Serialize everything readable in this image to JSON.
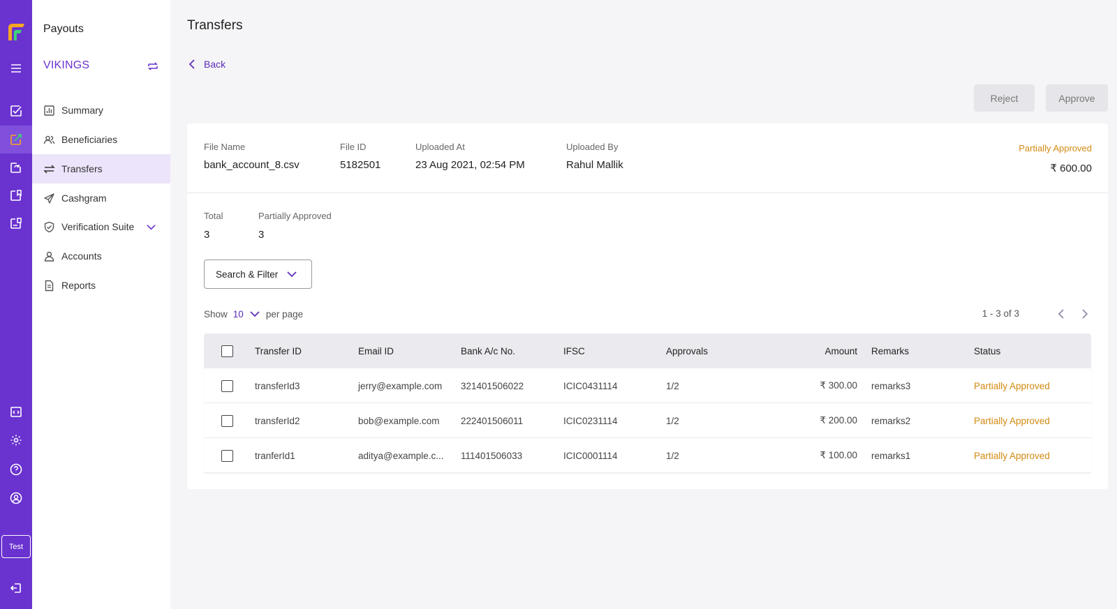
{
  "rail": {
    "test_label": "Test"
  },
  "sidebar": {
    "title": "Payouts",
    "org": "VIKINGS",
    "items": [
      {
        "label": "Summary",
        "icon": "chart-icon"
      },
      {
        "label": "Beneficiaries",
        "icon": "users-icon"
      },
      {
        "label": "Transfers",
        "icon": "transfer-icon"
      },
      {
        "label": "Cashgram",
        "icon": "paper-plane-icon"
      },
      {
        "label": "Verification Suite",
        "icon": "shield-check-icon"
      },
      {
        "label": "Accounts",
        "icon": "user-icon"
      },
      {
        "label": "Reports",
        "icon": "document-icon"
      }
    ]
  },
  "header": {
    "title": "Transfers",
    "back_label": "Back",
    "reject_label": "Reject",
    "approve_label": "Approve"
  },
  "file": {
    "name_label": "File Name",
    "name": "bank_account_8.csv",
    "id_label": "File ID",
    "id": "5182501",
    "uploaded_at_label": "Uploaded At",
    "uploaded_at": "23 Aug 2021, 02:54 PM",
    "uploaded_by_label": "Uploaded By",
    "uploaded_by": "Rahul Mallik",
    "status": "Partially Approved",
    "amount": "₹ 600.00"
  },
  "summary": {
    "total_label": "Total",
    "total": "3",
    "partial_label": "Partially Approved",
    "partial": "3"
  },
  "controls": {
    "filter_label": "Search & Filter",
    "show_label": "Show",
    "per_page_value": "10",
    "per_page_label": "per page",
    "pagination": "1 - 3 of 3"
  },
  "table": {
    "headers": {
      "transfer_id": "Transfer ID",
      "email": "Email ID",
      "bank": "Bank A/c No.",
      "ifsc": "IFSC",
      "approvals": "Approvals",
      "amount": "Amount",
      "remarks": "Remarks",
      "status": "Status"
    },
    "rows": [
      {
        "transfer_id": "transferId3",
        "email": "jerry@example.com",
        "bank": "321401506022",
        "ifsc": "ICIC0431114",
        "approvals": "1/2",
        "amount": "₹ 300.00",
        "remarks": "remarks3",
        "status": "Partially Approved"
      },
      {
        "transfer_id": "transferId2",
        "email": "bob@example.com",
        "bank": "222401506011",
        "ifsc": "ICIC0231114",
        "approvals": "1/2",
        "amount": "₹ 200.00",
        "remarks": "remarks2",
        "status": "Partially Approved"
      },
      {
        "transfer_id": "tranferId1",
        "email": "aditya@example.c...",
        "bank": "111401506033",
        "ifsc": "ICIC0001114",
        "approvals": "1/2",
        "amount": "₹ 100.00",
        "remarks": "remarks1",
        "status": "Partially Approved"
      }
    ]
  },
  "colors": {
    "brand": "#6a32cf",
    "accent_text": "#5a2bb8",
    "warning": "#d28a12"
  }
}
